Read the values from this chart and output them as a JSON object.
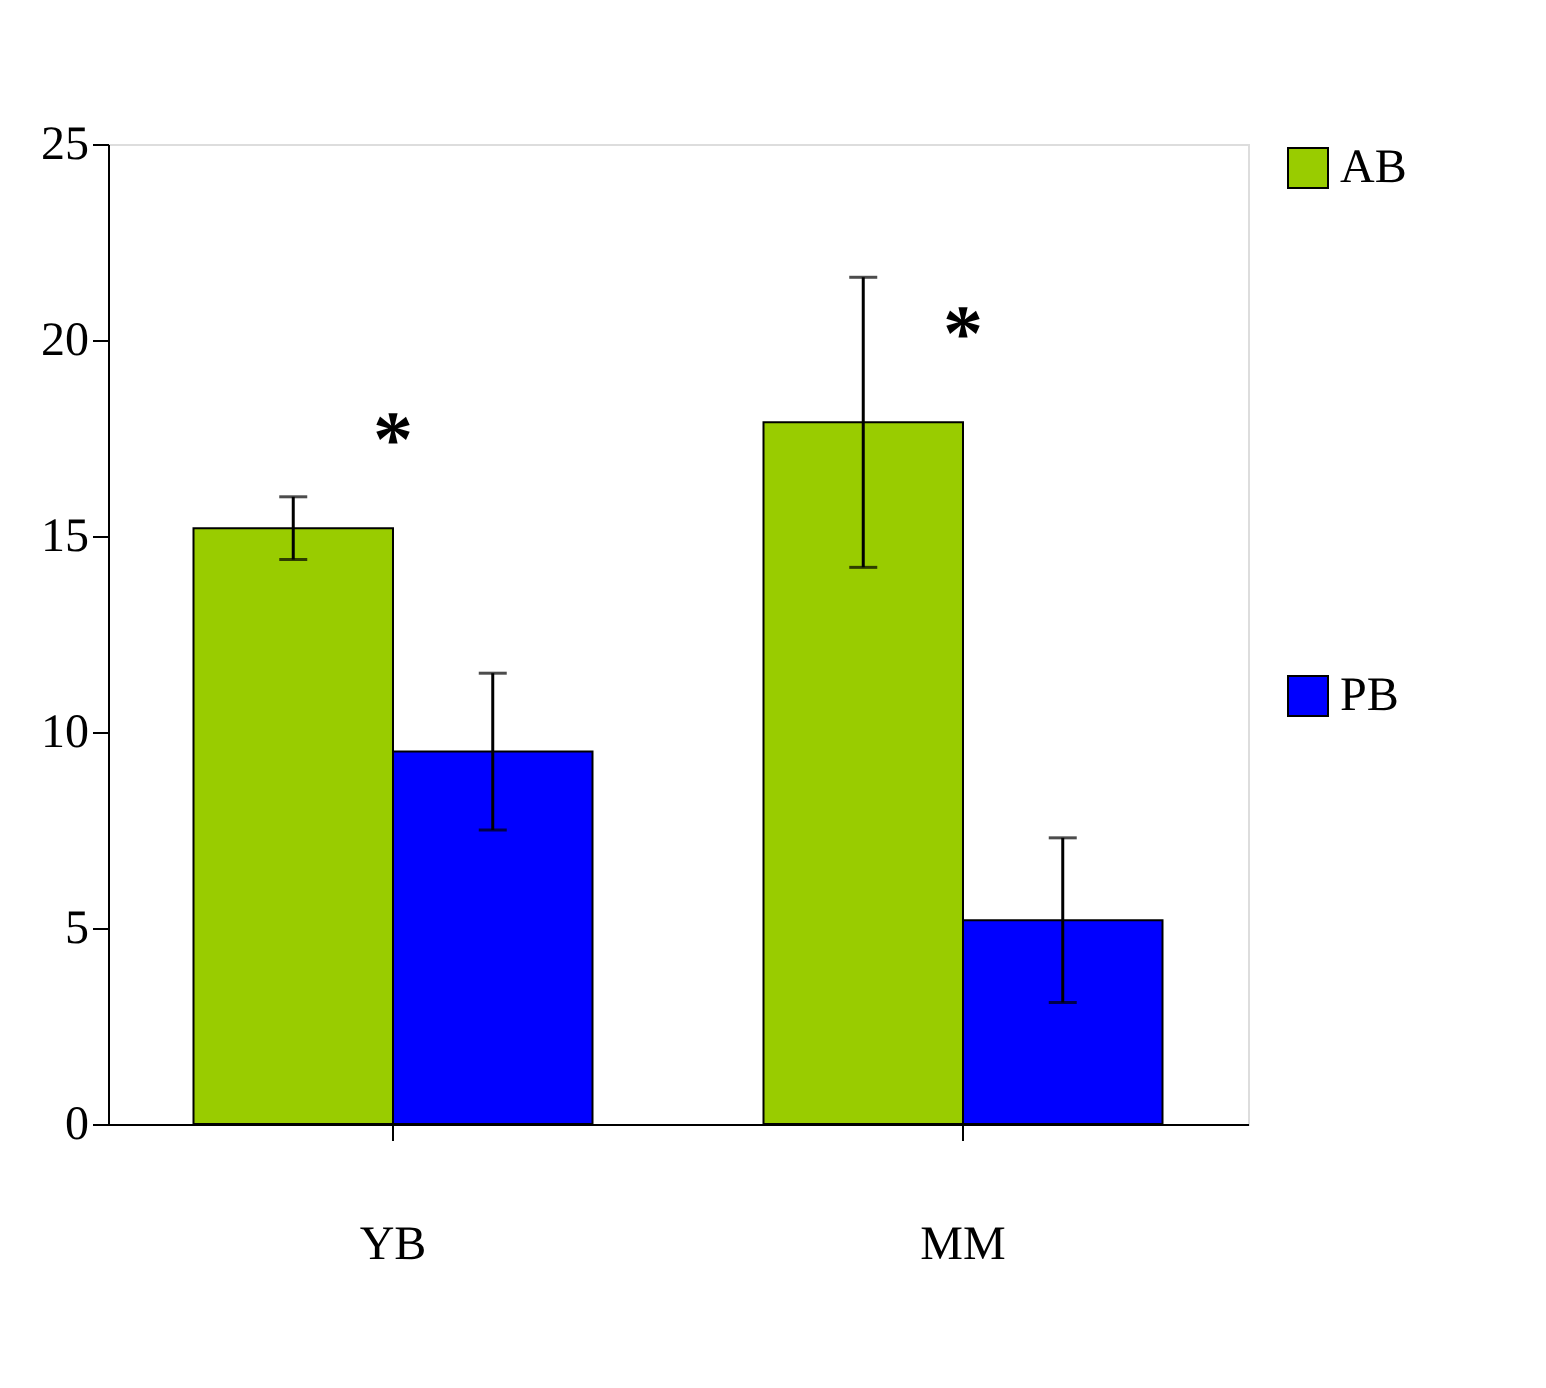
{
  "chart_data": {
    "type": "bar",
    "categories": [
      "YB",
      "MM"
    ],
    "series": [
      {
        "name": "AB",
        "color": "#99cc00",
        "values": [
          15.2,
          17.9
        ],
        "errors": [
          0.8,
          3.7
        ]
      },
      {
        "name": "PB",
        "color": "#0000ff",
        "values": [
          9.5,
          5.2
        ],
        "errors": [
          2.0,
          2.1
        ]
      }
    ],
    "ylim": [
      0,
      25
    ],
    "yticks": [
      0,
      5,
      10,
      15,
      20,
      25
    ],
    "grid": false,
    "legend": "right",
    "annotations": [
      "*",
      "*"
    ]
  }
}
